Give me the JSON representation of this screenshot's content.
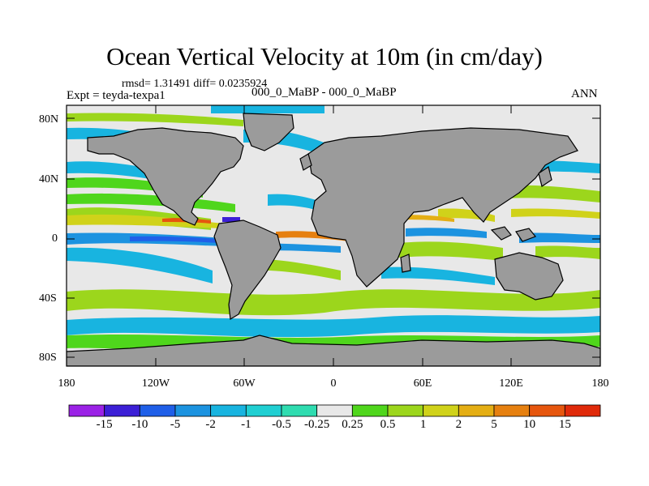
{
  "figure": {
    "title": "Ocean Vertical Velocity at 10m (in cm/day)",
    "stats": "rmsd= 1.31491 diff= 0.0235924",
    "left_subtitle": "Expt = teyda-texpa1",
    "center_subtitle": "000_0_MaBP - 000_0_MaBP",
    "right_subtitle": "ANN"
  },
  "axes": {
    "y_ticks": [
      "80N",
      "40N",
      "0",
      "40S",
      "80S"
    ],
    "x_ticks": [
      "180",
      "120W",
      "60W",
      "0",
      "60E",
      "120E",
      "180"
    ]
  },
  "colorbar": {
    "labels": [
      "-15",
      "-10",
      "-5",
      "-2",
      "-1",
      "-0.5",
      "-0.25",
      "0.25",
      "0.5",
      "1",
      "2",
      "5",
      "10",
      "15"
    ],
    "colors": [
      "#9b22e6",
      "#3c1fd6",
      "#1f5fe8",
      "#1c93e0",
      "#18b4e0",
      "#20cfd2",
      "#2fdcb0",
      "#e8e8e8",
      "#4fd61c",
      "#9cd61c",
      "#d0d21a",
      "#e4ae14",
      "#e68010",
      "#e6560e",
      "#e02a0a"
    ]
  },
  "map": {
    "land_color": "#9b9b9b",
    "ocean_background": "#e8e8e8"
  }
}
